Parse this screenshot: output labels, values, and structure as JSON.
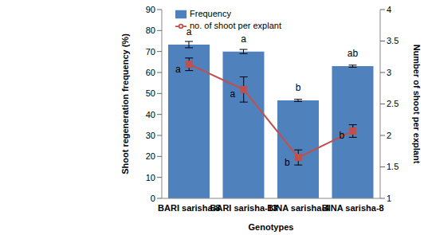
{
  "chart_data": {
    "type": "bar",
    "x_label": "Genotypes",
    "y_label": "Shoot regeneration frequency (%)",
    "y2_label": "Number of shoot per explant",
    "categories": [
      "BARI sarisha-8",
      "BARI sarisha-13",
      "BINA sarisha-4",
      "BINA sarisha-8"
    ],
    "series": [
      {
        "name": "Frequency",
        "type": "bar",
        "color": "#4f81bd",
        "values": [
          73.3,
          70,
          46.7,
          63
        ],
        "errors": [
          1.5,
          1,
          0.5,
          0.5
        ],
        "annotations": [
          "a",
          "a",
          "b",
          "ab"
        ]
      },
      {
        "name": "no. of shoot per explant",
        "type": "line",
        "axis": "y2",
        "color": "#c0504d",
        "marker": "square",
        "values": [
          3.13,
          2.73,
          1.65,
          2.07
        ],
        "errors": [
          0.1,
          0.2,
          0.12,
          0.1
        ],
        "annotations": [
          "a",
          "a",
          "b",
          "b"
        ]
      }
    ],
    "ylim": [
      0,
      90
    ],
    "yticks": [
      0,
      10,
      20,
      30,
      40,
      50,
      60,
      70,
      80,
      90
    ],
    "y2lim": [
      1,
      4
    ],
    "y2ticks": [
      1,
      1.5,
      2,
      2.5,
      3,
      3.5,
      4
    ],
    "grid": false,
    "legend": "top"
  }
}
